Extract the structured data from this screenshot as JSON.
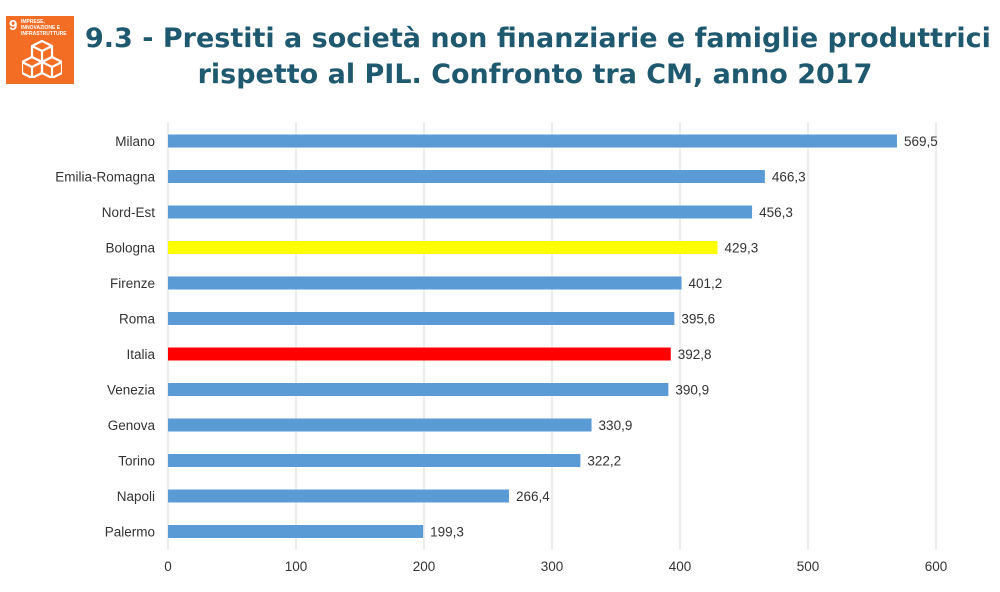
{
  "logo": {
    "number": "9",
    "text": "IMPRESE,\nINNOVAZIONE E\nINFRASTRUTTURE",
    "color": "#f36d25",
    "icon": "cube-stack-icon"
  },
  "title": {
    "line1": "9.3 - Prestiti a società non finanziarie e famiglie produttrici",
    "line2": "rispetto al PIL. Confronto tra CM, anno 2017"
  },
  "chart_data": {
    "type": "bar",
    "orientation": "horizontal",
    "categories": [
      "Milano",
      "Emilia-Romagna",
      "Nord-Est",
      "Bologna",
      "Firenze",
      "Roma",
      "Italia",
      "Venezia",
      "Genova",
      "Torino",
      "Napoli",
      "Palermo"
    ],
    "values": [
      569.5,
      466.3,
      456.3,
      429.3,
      401.2,
      395.6,
      392.8,
      390.9,
      330.9,
      322.2,
      266.4,
      199.3
    ],
    "value_labels": [
      "569,5",
      "466,3",
      "456,3",
      "429,3",
      "401,2",
      "395,6",
      "392,8",
      "390,9",
      "330,9",
      "322,2",
      "266,4",
      "199,3"
    ],
    "colors": [
      "#5b9bd5",
      "#5b9bd5",
      "#5b9bd5",
      "#ffff00",
      "#5b9bd5",
      "#5b9bd5",
      "#ff0000",
      "#5b9bd5",
      "#5b9bd5",
      "#5b9bd5",
      "#5b9bd5",
      "#5b9bd5"
    ],
    "xlim": [
      0,
      600
    ],
    "xticks": [
      0,
      100,
      200,
      300,
      400,
      500,
      600
    ],
    "grid": true,
    "legend": "none",
    "xlabel": "",
    "ylabel": ""
  }
}
